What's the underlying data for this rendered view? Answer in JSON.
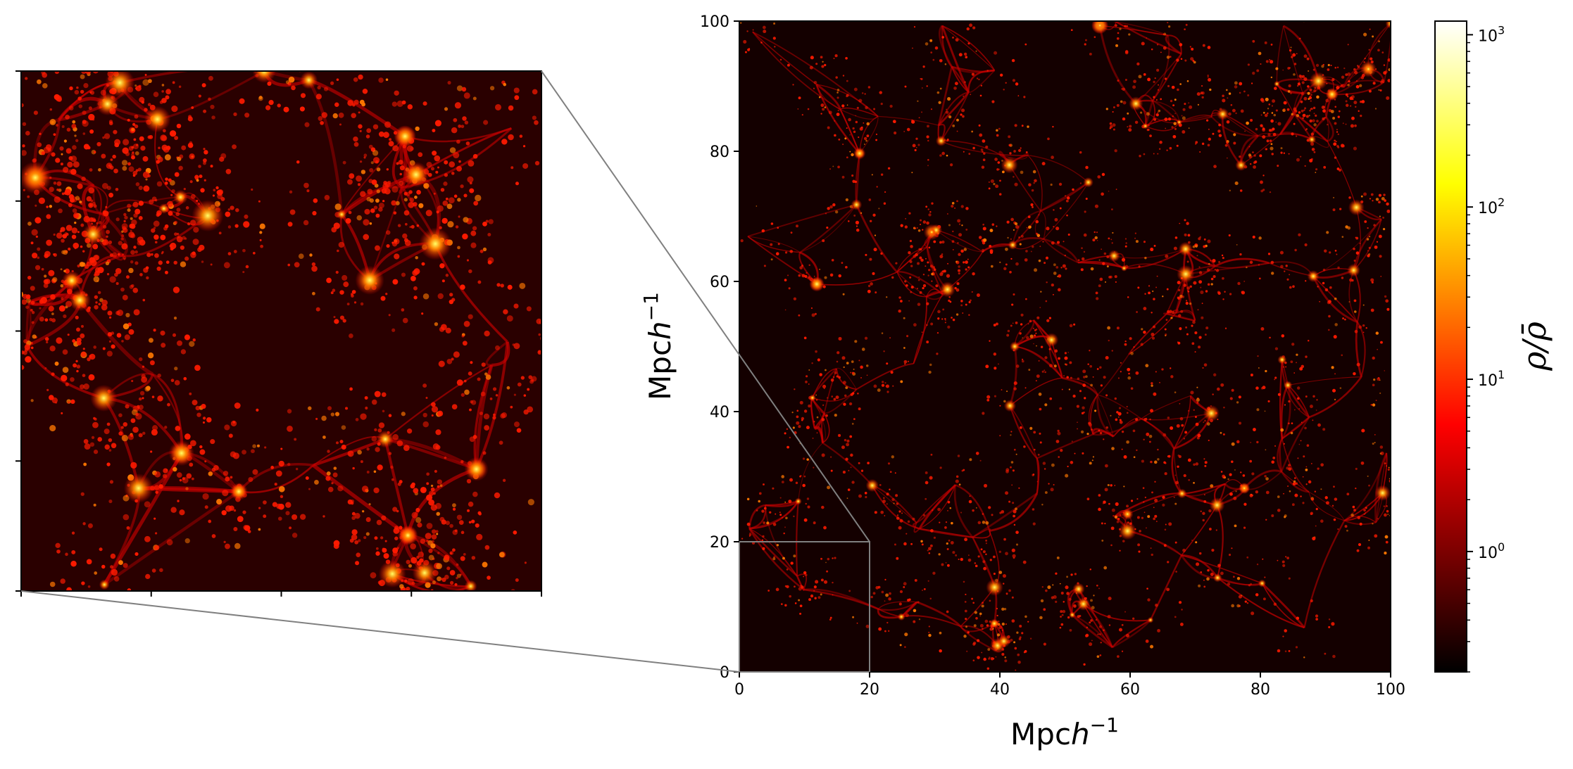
{
  "chart_data": [
    {
      "type": "heatmap",
      "panel": "main",
      "title": "",
      "xlabel_base": "Mpc",
      "xlabel_var": "h",
      "xlabel_exp": "−1",
      "ylabel_base": "Mpc",
      "ylabel_var": "h",
      "ylabel_exp": "−1",
      "xlim": [
        0,
        100
      ],
      "ylim": [
        0,
        100
      ],
      "xticks": [
        "0",
        "20",
        "40",
        "60",
        "80",
        "100"
      ],
      "yticks": [
        "0",
        "20",
        "40",
        "60",
        "80",
        "100"
      ],
      "colormap": "hot",
      "zoom_region": {
        "x": [
          0,
          20
        ],
        "y": [
          0,
          20
        ]
      },
      "zoom_box_color": "#808080"
    },
    {
      "type": "heatmap",
      "panel": "zoom-inset",
      "xlim": [
        0,
        20
      ],
      "ylim": [
        0,
        20
      ],
      "tick_labels_shown": false,
      "ticks": [
        0,
        5,
        10,
        15,
        20
      ],
      "colormap": "hot"
    },
    {
      "type": "colorbar",
      "scale": "log",
      "vmin": 0.2,
      "vmax": 1200,
      "label_main": "ρ/ρ̄",
      "ticks": [
        {
          "value": 1,
          "base": "10",
          "exp": "0"
        },
        {
          "value": 10,
          "base": "10",
          "exp": "1"
        },
        {
          "value": 100,
          "base": "10",
          "exp": "2"
        },
        {
          "value": 1000,
          "base": "10",
          "exp": "3"
        }
      ],
      "colormap": "hot"
    }
  ]
}
